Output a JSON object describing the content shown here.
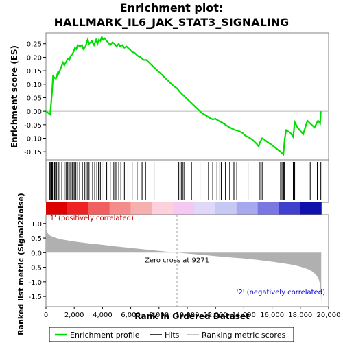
{
  "chart_data": {
    "type": "line",
    "title_line1": "Enrichment plot:",
    "title_line2": "HALLMARK_IL6_JAK_STAT3_SIGNALING",
    "colors": {
      "profile": "#00dd00",
      "hits": "#000000",
      "metric_fill": "#b0b0b0",
      "zero_line": "#c8c8c8",
      "positive_text": "#cc0000",
      "negative_text": "#0000cc"
    },
    "upper_panel": {
      "ylabel": "Enrichment score (ES)",
      "ylim": [
        -0.18,
        0.29
      ],
      "yticks": [
        "-0.15",
        "-0.10",
        "-0.05",
        "0.00",
        "0.05",
        "0.10",
        "0.15",
        "0.20",
        "0.25"
      ],
      "ytick_values": [
        -0.15,
        -0.1,
        -0.05,
        0.0,
        0.05,
        0.1,
        0.15,
        0.2,
        0.25
      ],
      "series": [
        {
          "name": "Enrichment profile",
          "x": [
            0,
            300,
            350,
            430,
            500,
            700,
            850,
            900,
            1200,
            1300,
            1550,
            1650,
            1750,
            1850,
            1950,
            2050,
            2150,
            2250,
            2400,
            2550,
            2650,
            2800,
            2950,
            3050,
            3250,
            3400,
            3550,
            3650,
            3750,
            3850,
            3950,
            4050,
            4150,
            4300,
            4550,
            4700,
            4850,
            5000,
            5150,
            5250,
            5400,
            5550,
            5700,
            5900,
            6100,
            6300,
            6500,
            6700,
            6900,
            7100,
            7400,
            7800,
            8200,
            8600,
            9000,
            9271,
            9500,
            9800,
            10100,
            10400,
            10700,
            11000,
            11300,
            11600,
            11800,
            12000,
            12200,
            12400,
            12700,
            13000,
            13200,
            13400,
            13600,
            13900,
            14100,
            14300,
            14600,
            14900,
            15050,
            15150,
            15300,
            15450,
            15700,
            16000,
            16300,
            16600,
            16800,
            16850,
            16900,
            17000,
            17300,
            17500,
            17600,
            17800,
            18200,
            18500,
            18700,
            19000,
            19250,
            19400,
            19450
          ],
          "y": [
            0.0,
            -0.012,
            0.02,
            0.07,
            0.13,
            0.12,
            0.145,
            0.14,
            0.18,
            0.17,
            0.195,
            0.19,
            0.205,
            0.21,
            0.22,
            0.235,
            0.23,
            0.245,
            0.24,
            0.245,
            0.23,
            0.24,
            0.265,
            0.25,
            0.26,
            0.245,
            0.265,
            0.25,
            0.265,
            0.26,
            0.275,
            0.265,
            0.27,
            0.26,
            0.245,
            0.255,
            0.25,
            0.24,
            0.25,
            0.24,
            0.245,
            0.235,
            0.24,
            0.23,
            0.22,
            0.215,
            0.205,
            0.2,
            0.19,
            0.19,
            0.175,
            0.155,
            0.135,
            0.115,
            0.095,
            0.085,
            0.07,
            0.055,
            0.04,
            0.025,
            0.01,
            -0.005,
            -0.015,
            -0.025,
            -0.03,
            -0.028,
            -0.035,
            -0.04,
            -0.05,
            -0.06,
            -0.065,
            -0.07,
            -0.072,
            -0.08,
            -0.09,
            -0.095,
            -0.105,
            -0.12,
            -0.13,
            -0.115,
            -0.1,
            -0.105,
            -0.115,
            -0.125,
            -0.138,
            -0.15,
            -0.16,
            -0.13,
            -0.1,
            -0.07,
            -0.08,
            -0.095,
            -0.04,
            -0.06,
            -0.085,
            -0.035,
            -0.045,
            -0.06,
            -0.035,
            -0.045,
            0.0
          ]
        }
      ]
    },
    "hits_panel": {
      "hit_positions": [
        230,
        280,
        340,
        390,
        430,
        470,
        560,
        610,
        680,
        760,
        880,
        980,
        1120,
        1300,
        1420,
        1540,
        1620,
        1700,
        1780,
        1860,
        1940,
        2030,
        2120,
        2240,
        2380,
        2580,
        2730,
        2830,
        2920,
        3050,
        3300,
        3450,
        3600,
        3720,
        3850,
        3960,
        4100,
        4300,
        4550,
        4800,
        4950,
        5150,
        5300,
        5550,
        5800,
        6100,
        6450,
        6800,
        7050,
        7650,
        9400,
        9500,
        9600,
        9700,
        9800,
        10300,
        10900,
        11500,
        11800,
        12100,
        12300,
        12400,
        12700,
        13000,
        13300,
        13500,
        14300,
        15100,
        15200,
        15300,
        16600,
        16700,
        16800,
        16850,
        16900,
        17500,
        17550,
        17600,
        18700,
        19200,
        19450
      ],
      "gradient_colors": [
        "#dd0000",
        "#ee2222",
        "#f06060",
        "#f48c8c",
        "#f7b0b0",
        "#fcd0dc",
        "#f4c8f0",
        "#e0d8f8",
        "#c8c8f4",
        "#a8a8ee",
        "#7878e0",
        "#4040cc",
        "#1010aa"
      ]
    },
    "lower_panel": {
      "ylabel": "Ranked list metric (Signal2Noise)",
      "ylim": [
        -1.85,
        1.3
      ],
      "yticks": [
        "-1.5",
        "-1.0",
        "-0.5",
        "0.0",
        "0.5",
        "1.0"
      ],
      "ytick_values": [
        -1.5,
        -1.0,
        -0.5,
        0.0,
        0.5,
        1.0
      ],
      "metric_x": [
        0,
        50,
        150,
        300,
        600,
        1000,
        1500,
        2000,
        3000,
        4000,
        5000,
        6000,
        7000,
        8000,
        9271,
        10000,
        11000,
        12000,
        13000,
        14000,
        15000,
        16000,
        17000,
        17500,
        18000,
        18500,
        18800,
        19100,
        19300,
        19400,
        19450,
        19480
      ],
      "metric_y": [
        0.85,
        0.75,
        0.65,
        0.58,
        0.52,
        0.46,
        0.42,
        0.38,
        0.32,
        0.27,
        0.21,
        0.16,
        0.11,
        0.06,
        0.0,
        -0.03,
        -0.07,
        -0.12,
        -0.16,
        -0.2,
        -0.25,
        -0.31,
        -0.38,
        -0.42,
        -0.48,
        -0.56,
        -0.63,
        -0.75,
        -0.9,
        -1.1,
        -1.4,
        -1.75
      ],
      "zero_cross_label": "Zero cross at 9271",
      "zero_cross_value": 9271,
      "positive_label": "'1' (positively correlated)",
      "negative_label": "'2' (negatively correlated)"
    },
    "x_axis": {
      "xlabel": "Rank in Ordered Dataset",
      "xlim": [
        0,
        20000
      ],
      "xticks": [
        "0",
        "2,000",
        "4,000",
        "6,000",
        "8,000",
        "10,000",
        "12,000",
        "14,000",
        "16,000",
        "18,000",
        "20,000"
      ],
      "xtick_values": [
        0,
        2000,
        4000,
        6000,
        8000,
        10000,
        12000,
        14000,
        16000,
        18000,
        20000
      ],
      "data_max": 19480
    },
    "legend": {
      "items": [
        {
          "label": "Enrichment profile",
          "color": "#00dd00"
        },
        {
          "label": "Hits",
          "color": "#000000"
        },
        {
          "label": "Ranking metric scores",
          "color": "#b0b0b0"
        }
      ]
    }
  }
}
